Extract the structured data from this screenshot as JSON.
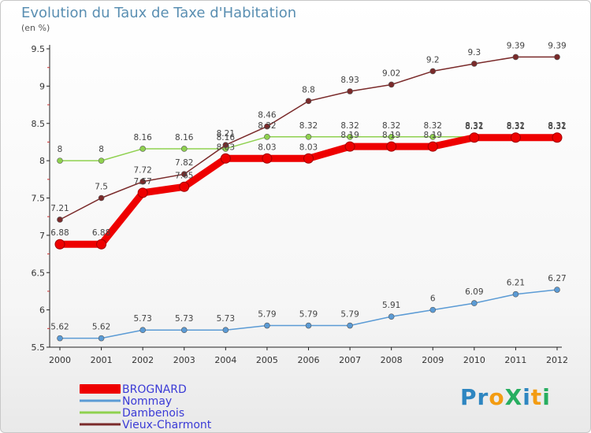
{
  "header": {
    "title": "Evolution du Taux de Taxe d'Habitation",
    "subtitle": "(en %)"
  },
  "logo": {
    "text": "Proxiti",
    "letters": [
      {
        "ch": "P",
        "color": "#2e86c1"
      },
      {
        "ch": "r",
        "color": "#2e86c1"
      },
      {
        "ch": "o",
        "color": "#f39c12"
      },
      {
        "ch": "X",
        "color": "#27ae60"
      },
      {
        "ch": "i",
        "color": "#2e86c1"
      },
      {
        "ch": "t",
        "color": "#f39c12"
      },
      {
        "ch": "i",
        "color": "#27ae60"
      }
    ]
  },
  "chart_data": {
    "type": "line",
    "title": "Evolution du Taux de Taxe d'Habitation",
    "subtitle": "(en %)",
    "xlabel": "",
    "ylabel": "",
    "x": [
      "2000",
      "2001",
      "2002",
      "2003",
      "2004",
      "2005",
      "2006",
      "2007",
      "2008",
      "2009",
      "2010",
      "2011",
      "2012"
    ],
    "ylim": [
      5.5,
      9.5
    ],
    "yticks": [
      "5.5",
      "6",
      "6.5",
      "7",
      "7.5",
      "8",
      "8.5",
      "9",
      "9.5"
    ],
    "grid": false,
    "legend_position": "bottom-left",
    "series": [
      {
        "name": "BROGNARD",
        "color": "#ee0000",
        "values": [
          6.88,
          6.88,
          7.57,
          7.65,
          8.03,
          8.03,
          8.03,
          8.19,
          8.19,
          8.19,
          8.31,
          8.31,
          8.31
        ],
        "labels": [
          "6.88",
          "6.88",
          "7.57",
          "7.65",
          "8.03",
          "8.03",
          "8.03",
          "8.19",
          "8.19",
          "8.19",
          "8.31",
          "8.31",
          "8.31"
        ]
      },
      {
        "name": "Nommay",
        "color": "#5b9bd5",
        "values": [
          5.62,
          5.62,
          5.73,
          5.73,
          5.73,
          5.79,
          5.79,
          5.79,
          5.91,
          6,
          6.09,
          6.21,
          6.27
        ],
        "labels": [
          "5.62",
          "5.62",
          "5.73",
          "5.73",
          "5.73",
          "5.79",
          "5.79",
          "5.79",
          "5.91",
          "6",
          "6.09",
          "6.21",
          "6.27"
        ]
      },
      {
        "name": "Dambenois",
        "color": "#8fd14f",
        "values": [
          8,
          8,
          8.16,
          8.16,
          8.16,
          8.32,
          8.32,
          8.32,
          8.32,
          8.32,
          8.32,
          8.32,
          8.32
        ],
        "labels": [
          "8",
          "8",
          "8.16",
          "8.16",
          "8.16",
          "8.32",
          "8.32",
          "8.32",
          "8.32",
          "8.32",
          "8.32",
          "8.32",
          "8.32"
        ]
      },
      {
        "name": "Vieux-Charmont",
        "color": "#7a2a2a",
        "values": [
          7.21,
          7.5,
          7.72,
          7.82,
          8.21,
          8.46,
          8.8,
          8.93,
          9.02,
          9.2,
          9.3,
          9.39,
          9.39
        ],
        "labels": [
          "7.21",
          "7.5",
          "7.72",
          "7.82",
          "8.21",
          "8.46",
          "8.8",
          "8.93",
          "9.02",
          "9.2",
          "9.3",
          "9.39",
          "9.39"
        ]
      }
    ]
  }
}
